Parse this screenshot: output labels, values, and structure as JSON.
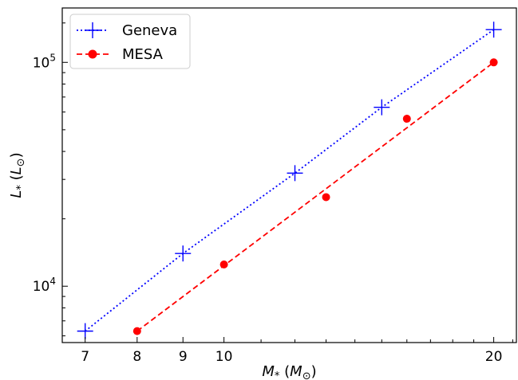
{
  "chart_data": {
    "type": "line",
    "title": "",
    "xlabel": "M_* (M_⊙)",
    "ylabel": "L_* (L_⊙)",
    "xscale": "log",
    "yscale": "log",
    "xlim": [
      6.6,
      21.2
    ],
    "ylim": [
      5600,
      175000
    ],
    "xticks": [
      {
        "value": 7,
        "label": "7"
      },
      {
        "value": 8,
        "label": "8"
      },
      {
        "value": 9,
        "label": "9"
      },
      {
        "value": 10,
        "label": "10"
      },
      {
        "value": 20,
        "label": "20"
      }
    ],
    "yticks": [
      {
        "value": 10000,
        "base": "10",
        "exp": "4"
      },
      {
        "value": 100000,
        "base": "10",
        "exp": "5"
      }
    ],
    "legend_position": "top-left",
    "series": [
      {
        "name": "Geneva",
        "color": "#0000ff",
        "line_style": "dotted",
        "marker": "plus",
        "x": [
          7,
          9,
          12,
          15,
          20
        ],
        "y": [
          6300,
          14000,
          32000,
          63000,
          140000
        ]
      },
      {
        "name": "MESA",
        "color": "#ff0000",
        "line_style": "dashed",
        "marker": "circle",
        "line_x": [
          8,
          20
        ],
        "line_y": [
          6300,
          100000
        ],
        "x": [
          8,
          10,
          13,
          16,
          20
        ],
        "y": [
          6300,
          12500,
          25000,
          56000,
          100000
        ]
      }
    ]
  }
}
